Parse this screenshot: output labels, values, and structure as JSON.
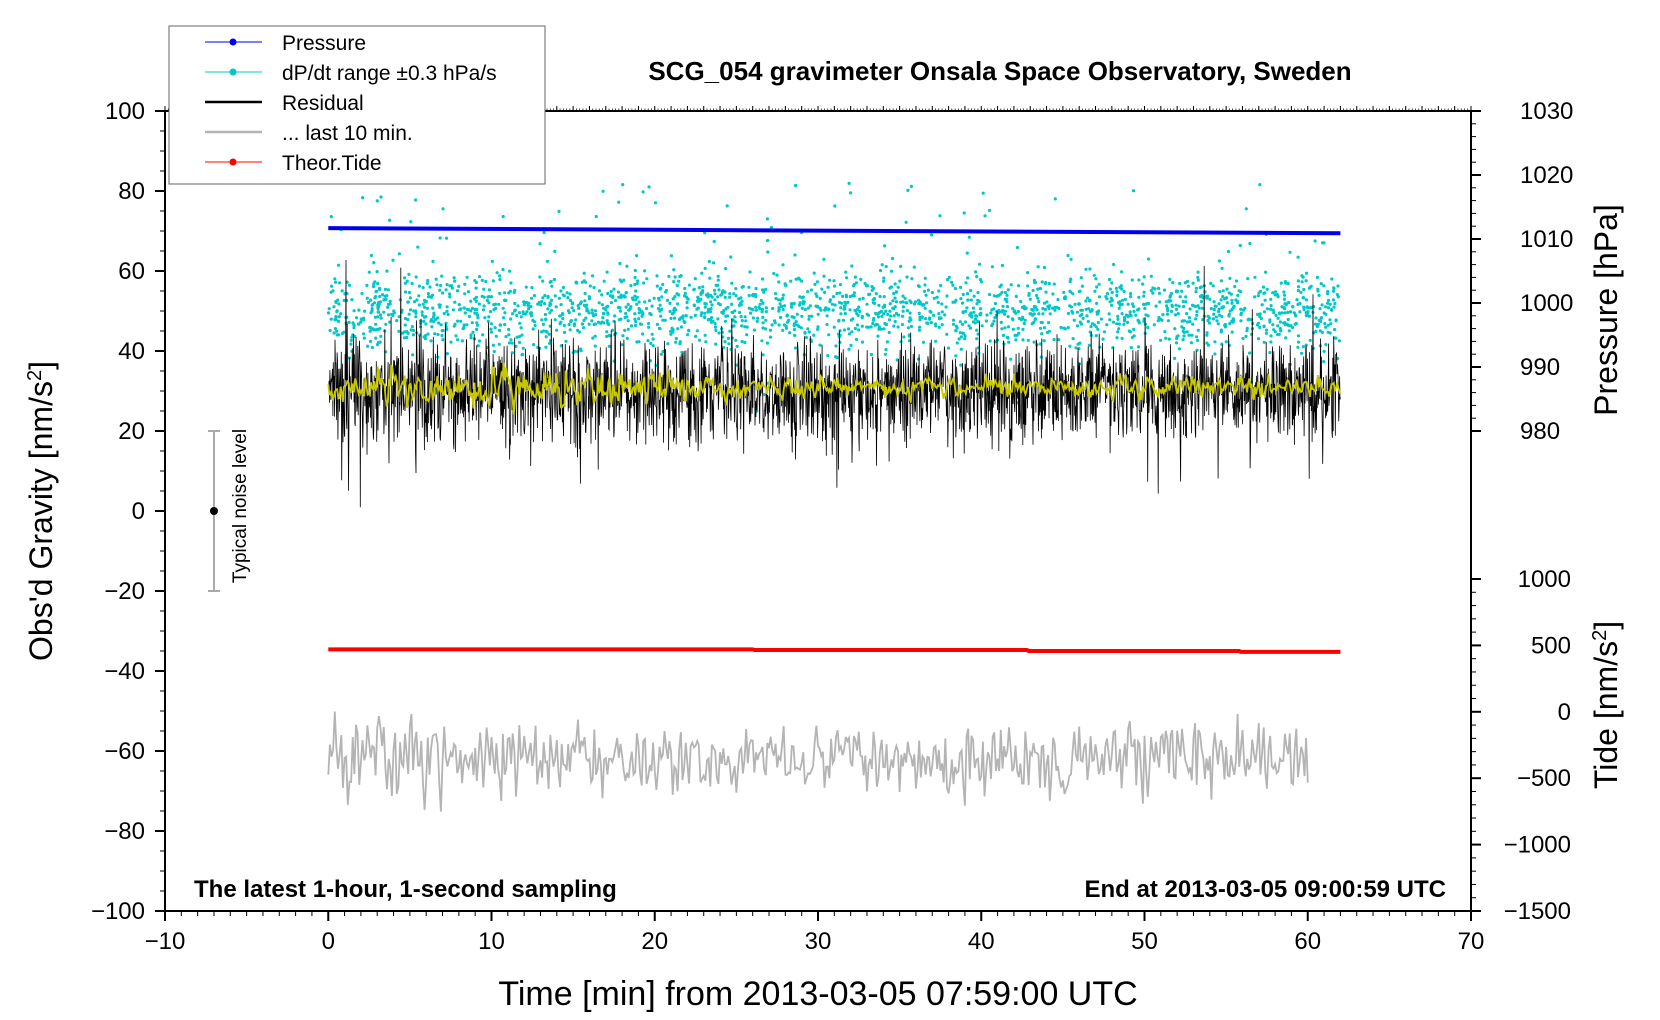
{
  "chart_data": {
    "type": "line",
    "title": "SCG_054 gravimeter Onsala Space Observatory, Sweden",
    "xlabel": "Time [min] from 2013-03-05 07:59:00 UTC",
    "ylabel_left": "Obs'd Gravity [nm/s²]",
    "ylabel_right_top": "Pressure [hPa]",
    "ylabel_right_bottom": "Tide [nm/s²]",
    "xlim": [
      -10,
      70
    ],
    "ylim_left": [
      -100,
      100
    ],
    "x_ticks": [
      "−10",
      "0",
      "10",
      "20",
      "30",
      "40",
      "50",
      "60",
      "70"
    ],
    "x_tick_values": [
      -10,
      0,
      10,
      20,
      30,
      40,
      50,
      60,
      70
    ],
    "y_left_ticks": [
      "−100",
      "−80",
      "−60",
      "−40",
      "−20",
      "0",
      "20",
      "40",
      "60",
      "80",
      "100"
    ],
    "y_left_tick_values": [
      -100,
      -80,
      -60,
      -40,
      -20,
      0,
      20,
      40,
      60,
      80,
      100
    ],
    "pressure_axis": {
      "ticks": [
        "980",
        "990",
        "1000",
        "1010",
        "1020",
        "1030"
      ],
      "tick_values": [
        980,
        990,
        1000,
        1010,
        1020,
        1030
      ],
      "range_mapping": {
        "hPa": [
          980,
          1030
        ],
        "gravity_units": [
          20,
          100
        ]
      }
    },
    "tide_axis": {
      "ticks": [
        "−1500",
        "−1000",
        "−500",
        "0",
        "500",
        "1000"
      ],
      "tick_values": [
        -1500,
        -1000,
        -500,
        0,
        500,
        1000
      ],
      "range_mapping": {
        "nm_s2": [
          -1500,
          1000
        ],
        "gravity_units": [
          -100,
          -17
        ]
      }
    },
    "legend": {
      "position": "top-left",
      "entries": [
        {
          "label": "Pressure",
          "color": "#0000ee",
          "style": "line-marker"
        },
        {
          "label": "dP/dt range ±0.3 hPa/s",
          "color": "#00c8c8",
          "style": "line-marker"
        },
        {
          "label": "Residual",
          "color": "#000000",
          "style": "line"
        },
        {
          "label": "... last 10 min.",
          "color": "#b4b4b4",
          "style": "line"
        },
        {
          "label": "Theor.Tide",
          "color": "#ff0000",
          "style": "line-marker"
        }
      ]
    },
    "series": [
      {
        "name": "Pressure",
        "axis": "pressure",
        "color": "#0000ee",
        "x": [
          0,
          62
        ],
        "values": [
          1011.7,
          1010.9
        ]
      },
      {
        "name": "Theor.Tide",
        "axis": "tide",
        "color": "#ff0000",
        "x": [
          0,
          26,
          26.1,
          42.8,
          42.9,
          55.8,
          55.9,
          62
        ],
        "values": [
          470,
          470,
          465,
          465,
          458,
          458,
          451,
          451
        ]
      },
      {
        "name": "dP/dt range ±0.3 hPa/s",
        "axis": "gravity",
        "color": "#00c8c8",
        "center": 50,
        "spread": 7,
        "x_range": [
          0,
          62
        ]
      },
      {
        "name": "Residual",
        "axis": "gravity",
        "color": "#000000",
        "center": 30,
        "amplitude": 14,
        "x_range": [
          0,
          62
        ]
      },
      {
        "name": "Residual smoothed",
        "axis": "gravity",
        "color": "#c8c800",
        "center": 31,
        "amplitude": 3,
        "x_range": [
          0,
          62
        ]
      },
      {
        "name": "... last 10 min.",
        "axis": "gravity",
        "color": "#b4b4b4",
        "center": -62,
        "amplitude": 9,
        "x_range": [
          0,
          60
        ]
      }
    ],
    "noise_bar": {
      "label": "Typical noise level",
      "x": -7,
      "y": 0,
      "low": -20,
      "high": 20
    },
    "annotations": {
      "bottom_left": "The latest 1-hour, 1-second sampling",
      "bottom_right": "End at 2013-03-05 09:00:59 UTC"
    },
    "colors": {
      "yellow_trace": "#c8c800"
    }
  }
}
